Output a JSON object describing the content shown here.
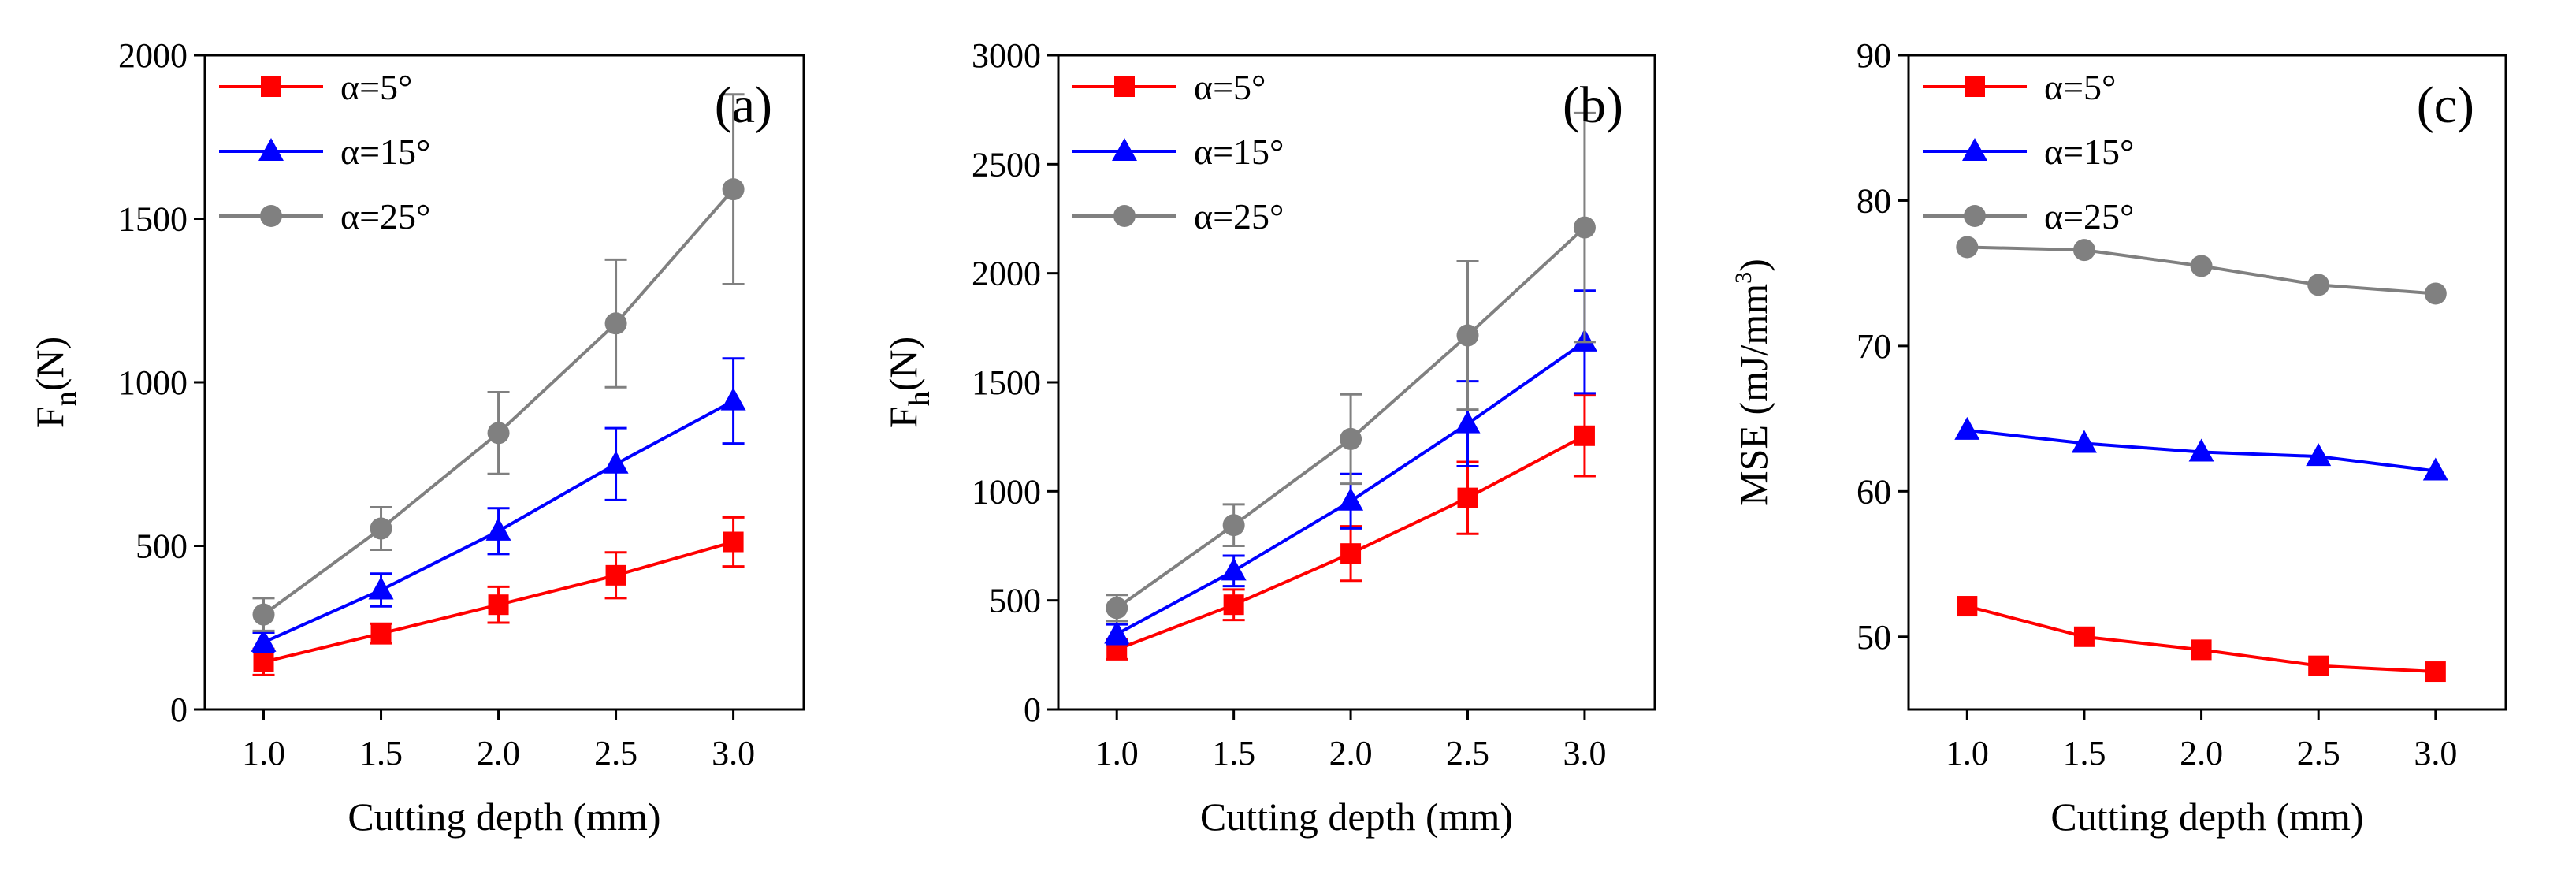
{
  "chart_data": [
    {
      "type": "line",
      "panel_label": "(a)",
      "xlabel": "Cutting depth (mm)",
      "ylabel": {
        "base": "F",
        "sub": "n",
        "rest": "(N)"
      },
      "xlim": [
        0.75,
        3.3
      ],
      "ylim": [
        0,
        2000
      ],
      "xticks": [
        1.0,
        1.5,
        2.0,
        2.5,
        3.0
      ],
      "xtick_labels": [
        "1.0",
        "1.5",
        "2.0",
        "2.5",
        "3.0"
      ],
      "yticks": [
        0,
        500,
        1000,
        1500,
        2000
      ],
      "ytick_labels": [
        "0",
        "500",
        "1000",
        "1500",
        "2000"
      ],
      "x": [
        1.0,
        1.5,
        2.0,
        2.5,
        3.0
      ],
      "legend_position": "top-left",
      "series": [
        {
          "name": "α=5°",
          "color": "#ff0000",
          "marker": "square",
          "values": [
            145,
            232,
            320,
            410,
            512
          ],
          "errors": [
            40,
            30,
            55,
            70,
            75
          ]
        },
        {
          "name": "α=15°",
          "color": "#0000ff",
          "marker": "triangle",
          "values": [
            205,
            365,
            545,
            750,
            943
          ],
          "errors": [
            30,
            50,
            70,
            110,
            130
          ]
        },
        {
          "name": "α=25°",
          "color": "#808080",
          "marker": "circle",
          "values": [
            290,
            553,
            845,
            1180,
            1590
          ],
          "errors": [
            50,
            65,
            125,
            195,
            290
          ]
        }
      ]
    },
    {
      "type": "line",
      "panel_label": "(b)",
      "xlabel": "Cutting depth (mm)",
      "ylabel": {
        "base": "F",
        "sub": "h",
        "rest": "(N)"
      },
      "xlim": [
        0.75,
        3.3
      ],
      "ylim": [
        0,
        3000
      ],
      "xticks": [
        1.0,
        1.5,
        2.0,
        2.5,
        3.0
      ],
      "xtick_labels": [
        "1.0",
        "1.5",
        "2.0",
        "2.5",
        "3.0"
      ],
      "yticks": [
        0,
        500,
        1000,
        1500,
        2000,
        2500,
        3000
      ],
      "ytick_labels": [
        "0",
        "500",
        "1000",
        "1500",
        "2000",
        "2500",
        "3000"
      ],
      "x": [
        1.0,
        1.5,
        2.0,
        2.5,
        3.0
      ],
      "legend_position": "top-left",
      "series": [
        {
          "name": "α=5°",
          "color": "#ff0000",
          "marker": "square",
          "values": [
            275,
            480,
            715,
            970,
            1255
          ],
          "errors": [
            45,
            70,
            125,
            165,
            185
          ]
        },
        {
          "name": "α=15°",
          "color": "#0000ff",
          "marker": "triangle",
          "values": [
            345,
            635,
            955,
            1310,
            1685
          ],
          "errors": [
            45,
            70,
            125,
            195,
            235
          ]
        },
        {
          "name": "α=25°",
          "color": "#808080",
          "marker": "circle",
          "values": [
            465,
            845,
            1240,
            1715,
            2210
          ],
          "errors": [
            60,
            95,
            205,
            340,
            525
          ]
        }
      ]
    },
    {
      "type": "line",
      "panel_label": "(c)",
      "xlabel": "Cutting depth (mm)",
      "ylabel": {
        "base": "MSE (mJ/mm",
        "sup": "3",
        "rest": ")"
      },
      "xlim": [
        0.75,
        3.3
      ],
      "ylim": [
        45,
        90
      ],
      "xticks": [
        1.0,
        1.5,
        2.0,
        2.5,
        3.0
      ],
      "xtick_labels": [
        "1.0",
        "1.5",
        "2.0",
        "2.5",
        "3.0"
      ],
      "yticks": [
        50,
        60,
        70,
        80,
        90
      ],
      "ytick_labels": [
        "50",
        "60",
        "70",
        "80",
        "90"
      ],
      "x": [
        1.0,
        1.5,
        2.0,
        2.5,
        3.0
      ],
      "legend_position": "top-left",
      "series": [
        {
          "name": "α=5°",
          "color": "#ff0000",
          "marker": "square",
          "values": [
            52.1,
            50.0,
            49.1,
            48.0,
            47.6
          ]
        },
        {
          "name": "α=15°",
          "color": "#0000ff",
          "marker": "triangle",
          "values": [
            64.2,
            63.3,
            62.7,
            62.4,
            61.4
          ]
        },
        {
          "name": "α=25°",
          "color": "#808080",
          "marker": "circle",
          "values": [
            76.8,
            76.6,
            75.5,
            74.2,
            73.6
          ]
        }
      ]
    }
  ]
}
